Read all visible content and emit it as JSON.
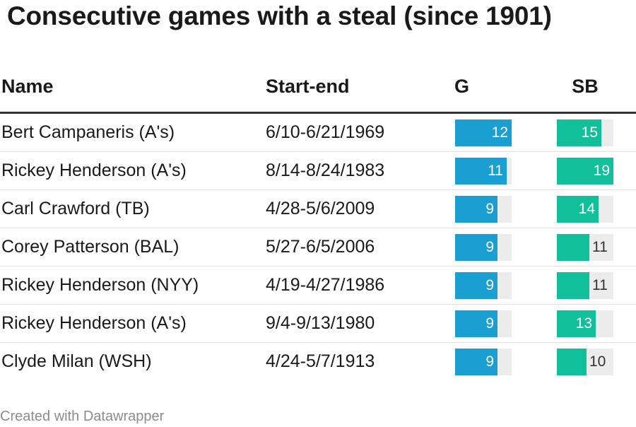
{
  "title": "Consecutive games with a steal (since 1901)",
  "footer": "Created with Datawrapper",
  "colors": {
    "g_bar": "#1a9fd3",
    "sb_bar": "#12bf9b",
    "track": "#ececec"
  },
  "chart_data": {
    "type": "table",
    "title": "Consecutive games with a steal (since 1901)",
    "columns": [
      "Name",
      "Start-end",
      "G",
      "SB"
    ],
    "g_max": 12,
    "sb_max": 19,
    "rows": [
      {
        "name": "Bert Campaneris (A's)",
        "dates": "6/10-6/21/1969",
        "g": 12,
        "sb": 15
      },
      {
        "name": "Rickey Henderson (A's)",
        "dates": "8/14-8/24/1983",
        "g": 11,
        "sb": 19
      },
      {
        "name": "Carl Crawford (TB)",
        "dates": "4/28-5/6/2009",
        "g": 9,
        "sb": 14
      },
      {
        "name": "Corey Patterson (BAL)",
        "dates": "5/27-6/5/2006",
        "g": 9,
        "sb": 11
      },
      {
        "name": "Rickey Henderson (NYY)",
        "dates": "4/19-4/27/1986",
        "g": 9,
        "sb": 11
      },
      {
        "name": "Rickey Henderson (A's)",
        "dates": "9/4-9/13/1980",
        "g": 9,
        "sb": 13
      },
      {
        "name": "Clyde Milan (WSH)",
        "dates": "4/24-5/7/1913",
        "g": 9,
        "sb": 10
      }
    ]
  }
}
